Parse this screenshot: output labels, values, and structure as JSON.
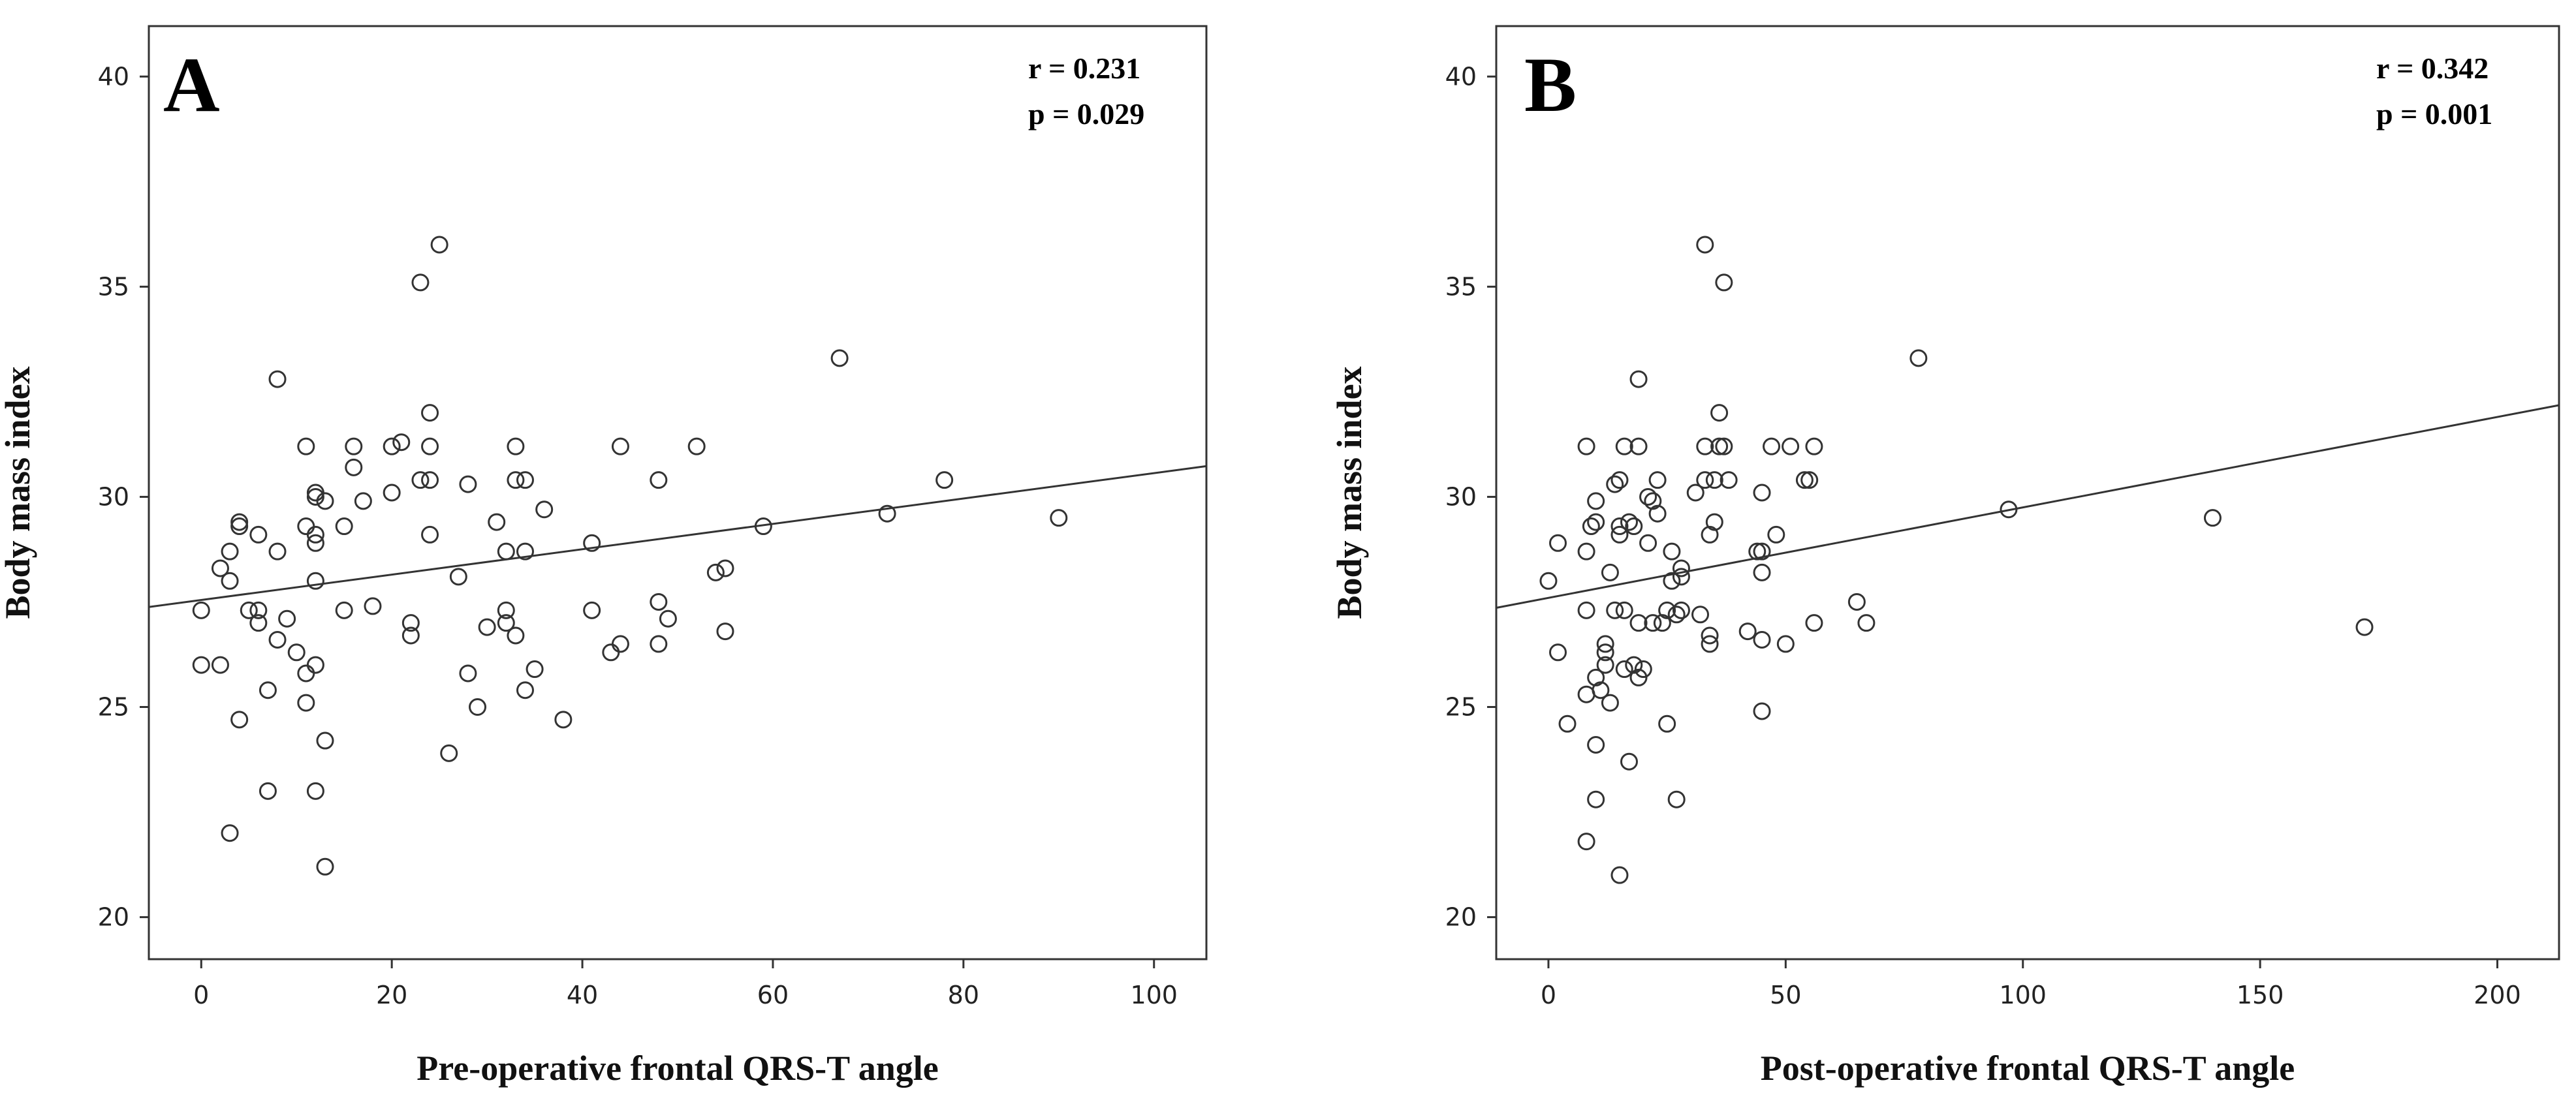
{
  "chart_data": [
    {
      "type": "scatter",
      "panel_label": "A",
      "xlabel": "Pre-operative frontal QRS-T angle",
      "ylabel": "Body mass index",
      "xlim": [
        -5.5,
        105.5
      ],
      "ylim": [
        19,
        41.2
      ],
      "x_ticks": [
        0,
        20,
        40,
        60,
        80,
        100
      ],
      "x_tick_labels": [
        "0",
        "20",
        "40",
        "60",
        "80",
        "100"
      ],
      "y_ticks": [
        20,
        25,
        30,
        35,
        40
      ],
      "y_tick_labels": [
        "20",
        "25",
        "30",
        "35",
        "40"
      ],
      "grid": false,
      "stats": {
        "r": "r = 0.231",
        "p": "p = 0.029"
      },
      "fit_line": {
        "x": [
          -5.5,
          105.5
        ],
        "y": [
          27.38,
          30.73
        ]
      },
      "points": [
        {
          "x": 0,
          "y": 27.3
        },
        {
          "x": 0,
          "y": 26.0
        },
        {
          "x": 2,
          "y": 26.0
        },
        {
          "x": 2,
          "y": 28.3
        },
        {
          "x": 3,
          "y": 28.7
        },
        {
          "x": 3,
          "y": 28.0
        },
        {
          "x": 3,
          "y": 22.0
        },
        {
          "x": 4,
          "y": 29.3
        },
        {
          "x": 4,
          "y": 29.4
        },
        {
          "x": 4,
          "y": 24.7
        },
        {
          "x": 5,
          "y": 27.3
        },
        {
          "x": 6,
          "y": 29.1
        },
        {
          "x": 6,
          "y": 27.3
        },
        {
          "x": 6,
          "y": 27.0
        },
        {
          "x": 7,
          "y": 25.4
        },
        {
          "x": 7,
          "y": 23.0
        },
        {
          "x": 8,
          "y": 32.8
        },
        {
          "x": 8,
          "y": 28.7
        },
        {
          "x": 8,
          "y": 26.6
        },
        {
          "x": 9,
          "y": 27.1
        },
        {
          "x": 10,
          "y": 26.3
        },
        {
          "x": 11,
          "y": 31.2
        },
        {
          "x": 11,
          "y": 29.3
        },
        {
          "x": 11,
          "y": 25.8
        },
        {
          "x": 11,
          "y": 25.1
        },
        {
          "x": 12,
          "y": 30.1
        },
        {
          "x": 12,
          "y": 30.0
        },
        {
          "x": 12,
          "y": 29.1
        },
        {
          "x": 12,
          "y": 28.9
        },
        {
          "x": 12,
          "y": 28.0
        },
        {
          "x": 12,
          "y": 26.0
        },
        {
          "x": 12,
          "y": 23.0
        },
        {
          "x": 13,
          "y": 29.9
        },
        {
          "x": 13,
          "y": 24.2
        },
        {
          "x": 13,
          "y": 21.2
        },
        {
          "x": 15,
          "y": 29.3
        },
        {
          "x": 15,
          "y": 27.3
        },
        {
          "x": 16,
          "y": 31.2
        },
        {
          "x": 16,
          "y": 30.7
        },
        {
          "x": 17,
          "y": 29.9
        },
        {
          "x": 18,
          "y": 27.4
        },
        {
          "x": 20,
          "y": 31.2
        },
        {
          "x": 20,
          "y": 30.1
        },
        {
          "x": 21,
          "y": 31.3
        },
        {
          "x": 22,
          "y": 27.0
        },
        {
          "x": 22,
          "y": 26.7
        },
        {
          "x": 23,
          "y": 35.1
        },
        {
          "x": 23,
          "y": 30.4
        },
        {
          "x": 24,
          "y": 32.0
        },
        {
          "x": 24,
          "y": 31.2
        },
        {
          "x": 24,
          "y": 30.4
        },
        {
          "x": 24,
          "y": 29.1
        },
        {
          "x": 25,
          "y": 36.0
        },
        {
          "x": 26,
          "y": 23.9
        },
        {
          "x": 27,
          "y": 28.1
        },
        {
          "x": 28,
          "y": 30.3
        },
        {
          "x": 28,
          "y": 25.8
        },
        {
          "x": 29,
          "y": 25.0
        },
        {
          "x": 30,
          "y": 26.9
        },
        {
          "x": 31,
          "y": 29.4
        },
        {
          "x": 32,
          "y": 28.7
        },
        {
          "x": 32,
          "y": 27.3
        },
        {
          "x": 32,
          "y": 27.0
        },
        {
          "x": 33,
          "y": 31.2
        },
        {
          "x": 33,
          "y": 30.4
        },
        {
          "x": 33,
          "y": 26.7
        },
        {
          "x": 34,
          "y": 30.4
        },
        {
          "x": 34,
          "y": 28.7
        },
        {
          "x": 34,
          "y": 25.4
        },
        {
          "x": 35,
          "y": 25.9
        },
        {
          "x": 36,
          "y": 29.7
        },
        {
          "x": 38,
          "y": 24.7
        },
        {
          "x": 41,
          "y": 28.9
        },
        {
          "x": 41,
          "y": 27.3
        },
        {
          "x": 43,
          "y": 26.3
        },
        {
          "x": 44,
          "y": 31.2
        },
        {
          "x": 44,
          "y": 26.5
        },
        {
          "x": 48,
          "y": 30.4
        },
        {
          "x": 48,
          "y": 27.5
        },
        {
          "x": 48,
          "y": 26.5
        },
        {
          "x": 49,
          "y": 27.1
        },
        {
          "x": 52,
          "y": 31.2
        },
        {
          "x": 54,
          "y": 28.2
        },
        {
          "x": 55,
          "y": 28.3
        },
        {
          "x": 55,
          "y": 26.8
        },
        {
          "x": 59,
          "y": 29.3
        },
        {
          "x": 67,
          "y": 33.3
        },
        {
          "x": 72,
          "y": 29.6
        },
        {
          "x": 78,
          "y": 30.4
        },
        {
          "x": 90,
          "y": 29.5
        }
      ]
    },
    {
      "type": "scatter",
      "panel_label": "B",
      "xlabel": "Post-operative frontal QRS-T angle",
      "ylabel": "Body mass index",
      "xlim": [
        -11,
        213
      ],
      "ylim": [
        19,
        41.2
      ],
      "x_ticks": [
        0,
        50,
        100,
        150,
        200
      ],
      "x_tick_labels": [
        "0",
        "50",
        "100",
        "150",
        "200"
      ],
      "y_ticks": [
        20,
        25,
        30,
        35,
        40
      ],
      "y_tick_labels": [
        "20",
        "25",
        "30",
        "35",
        "40"
      ],
      "grid": false,
      "stats": {
        "r": "r = 0.342",
        "p": "p = 0.001"
      },
      "fit_line": {
        "x": [
          -11,
          213
        ],
        "y": [
          27.36,
          32.18
        ]
      },
      "points": [
        {
          "x": 0,
          "y": 28.0
        },
        {
          "x": 2,
          "y": 28.9
        },
        {
          "x": 2,
          "y": 26.3
        },
        {
          "x": 4,
          "y": 24.6
        },
        {
          "x": 8,
          "y": 31.2
        },
        {
          "x": 8,
          "y": 28.7
        },
        {
          "x": 8,
          "y": 27.3
        },
        {
          "x": 8,
          "y": 25.3
        },
        {
          "x": 8,
          "y": 21.8
        },
        {
          "x": 9,
          "y": 29.3
        },
        {
          "x": 10,
          "y": 29.9
        },
        {
          "x": 10,
          "y": 29.4
        },
        {
          "x": 10,
          "y": 25.7
        },
        {
          "x": 10,
          "y": 24.1
        },
        {
          "x": 10,
          "y": 22.8
        },
        {
          "x": 11,
          "y": 25.4
        },
        {
          "x": 12,
          "y": 26.5
        },
        {
          "x": 12,
          "y": 26.3
        },
        {
          "x": 12,
          "y": 26.0
        },
        {
          "x": 13,
          "y": 25.1
        },
        {
          "x": 13,
          "y": 28.2
        },
        {
          "x": 14,
          "y": 30.3
        },
        {
          "x": 14,
          "y": 27.3
        },
        {
          "x": 15,
          "y": 30.4
        },
        {
          "x": 15,
          "y": 29.3
        },
        {
          "x": 15,
          "y": 29.1
        },
        {
          "x": 15,
          "y": 21.0
        },
        {
          "x": 16,
          "y": 31.2
        },
        {
          "x": 16,
          "y": 27.3
        },
        {
          "x": 16,
          "y": 25.9
        },
        {
          "x": 17,
          "y": 29.4
        },
        {
          "x": 17,
          "y": 23.7
        },
        {
          "x": 18,
          "y": 29.3
        },
        {
          "x": 18,
          "y": 26.0
        },
        {
          "x": 19,
          "y": 32.8
        },
        {
          "x": 19,
          "y": 31.2
        },
        {
          "x": 19,
          "y": 27.0
        },
        {
          "x": 19,
          "y": 25.7
        },
        {
          "x": 20,
          "y": 25.9
        },
        {
          "x": 21,
          "y": 30.0
        },
        {
          "x": 21,
          "y": 28.9
        },
        {
          "x": 22,
          "y": 29.9
        },
        {
          "x": 22,
          "y": 27.0
        },
        {
          "x": 23,
          "y": 30.4
        },
        {
          "x": 23,
          "y": 29.6
        },
        {
          "x": 24,
          "y": 27.0
        },
        {
          "x": 25,
          "y": 24.6
        },
        {
          "x": 25,
          "y": 27.3
        },
        {
          "x": 26,
          "y": 28.7
        },
        {
          "x": 26,
          "y": 28.0
        },
        {
          "x": 27,
          "y": 22.8
        },
        {
          "x": 27,
          "y": 27.2
        },
        {
          "x": 28,
          "y": 28.3
        },
        {
          "x": 28,
          "y": 28.1
        },
        {
          "x": 28,
          "y": 27.3
        },
        {
          "x": 31,
          "y": 30.1
        },
        {
          "x": 32,
          "y": 27.2
        },
        {
          "x": 33,
          "y": 36.0
        },
        {
          "x": 33,
          "y": 31.2
        },
        {
          "x": 33,
          "y": 30.4
        },
        {
          "x": 34,
          "y": 29.1
        },
        {
          "x": 34,
          "y": 26.7
        },
        {
          "x": 34,
          "y": 26.5
        },
        {
          "x": 35,
          "y": 30.4
        },
        {
          "x": 35,
          "y": 29.4
        },
        {
          "x": 36,
          "y": 32.0
        },
        {
          "x": 36,
          "y": 31.2
        },
        {
          "x": 37,
          "y": 35.1
        },
        {
          "x": 37,
          "y": 31.2
        },
        {
          "x": 38,
          "y": 30.4
        },
        {
          "x": 42,
          "y": 26.8
        },
        {
          "x": 44,
          "y": 28.7
        },
        {
          "x": 45,
          "y": 30.1
        },
        {
          "x": 45,
          "y": 28.7
        },
        {
          "x": 45,
          "y": 28.2
        },
        {
          "x": 45,
          "y": 26.6
        },
        {
          "x": 45,
          "y": 24.9
        },
        {
          "x": 47,
          "y": 31.2
        },
        {
          "x": 48,
          "y": 29.1
        },
        {
          "x": 50,
          "y": 26.5
        },
        {
          "x": 51,
          "y": 31.2
        },
        {
          "x": 54,
          "y": 30.4
        },
        {
          "x": 55,
          "y": 30.4
        },
        {
          "x": 56,
          "y": 31.2
        },
        {
          "x": 56,
          "y": 27.0
        },
        {
          "x": 65,
          "y": 27.5
        },
        {
          "x": 67,
          "y": 27.0
        },
        {
          "x": 78,
          "y": 33.3
        },
        {
          "x": 97,
          "y": 29.7
        },
        {
          "x": 140,
          "y": 29.5
        },
        {
          "x": 172,
          "y": 26.9
        }
      ]
    }
  ]
}
